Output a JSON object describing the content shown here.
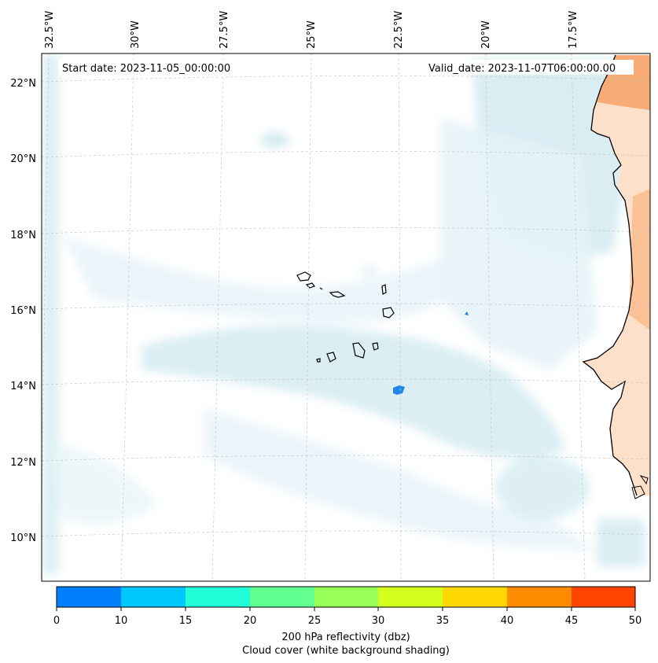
{
  "annotations": {
    "start_date": "Start date: 2023-11-05_00:00:00",
    "valid_date": "Valid_date: 2023-11-07T06:00:00.00"
  },
  "lon_labels": [
    "32.5°W",
    "30°W",
    "27.5°W",
    "25°W",
    "22.5°W",
    "20°W",
    "17.5°W"
  ],
  "lat_labels": [
    "22°N",
    "20°N",
    "18°N",
    "16°N",
    "14°N",
    "12°N",
    "10°N"
  ],
  "colorbar": {
    "ticks": [
      "0",
      "10",
      "15",
      "20",
      "25",
      "30",
      "35",
      "40",
      "45",
      "50"
    ],
    "colors": [
      "#0080ff",
      "#00c8ff",
      "#20ffd8",
      "#60ff90",
      "#98ff58",
      "#d4ff1c",
      "#ffd700",
      "#ff8c00",
      "#ff4500"
    ],
    "label": "200 hPa reflectivity (dbz)",
    "sublabel": "Cloud cover (white background shading)"
  },
  "colors": {
    "cloud": "#cfe8f0",
    "cloud_light": "#e6f3f7",
    "land": "#f7a66b",
    "land_light": "#fde0c9",
    "echo": "#1e88e5",
    "coast": "#000000",
    "grid": "#c8c8c8"
  }
}
